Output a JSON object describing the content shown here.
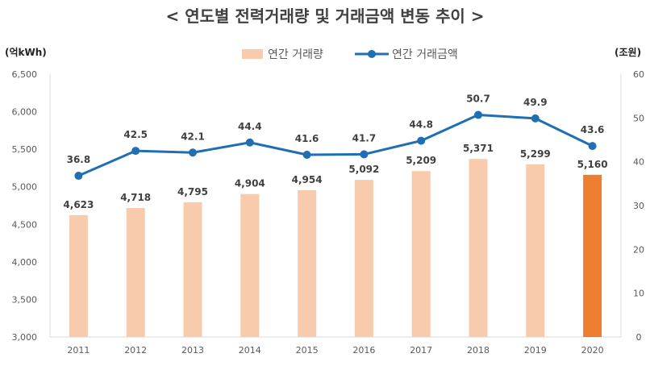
{
  "chart_data": {
    "type": "bar",
    "title": "< 연도별 전력거래량 및 거래금액 변동 추이 >",
    "ylabel_left": "(억kWh)",
    "ylabel_right": "(조원)",
    "categories": [
      "2011",
      "2012",
      "2013",
      "2014",
      "2015",
      "2016",
      "2017",
      "2018",
      "2019",
      "2020"
    ],
    "ylim_left": [
      3000,
      6500
    ],
    "yticks_left": [
      "3,000",
      "3,500",
      "4,000",
      "4,500",
      "5,000",
      "5,500",
      "6,000",
      "6,500"
    ],
    "ylim_right": [
      0,
      60
    ],
    "yticks_right": [
      "0",
      "10",
      "20",
      "30",
      "40",
      "50",
      "60"
    ],
    "legend_position": "top-center",
    "grid": false,
    "series": [
      {
        "name": "연간 거래량",
        "type": "bar",
        "axis": "left",
        "color": "#F8CBAD",
        "highlight_color": "#ED7D31",
        "values": [
          4623,
          4718,
          4795,
          4904,
          4954,
          5092,
          5209,
          5371,
          5299,
          5160
        ],
        "labels": [
          "4,623",
          "4,718",
          "4,795",
          "4,904",
          "4,954",
          "5,092",
          "5,209",
          "5,371",
          "5,299",
          "5,160"
        ]
      },
      {
        "name": "연간 거래금액",
        "type": "line",
        "axis": "right",
        "color": "#1F6FB2",
        "values": [
          36.8,
          42.5,
          42.1,
          44.4,
          41.6,
          41.7,
          44.8,
          50.7,
          49.9,
          43.6
        ],
        "labels": [
          "36.8",
          "42.5",
          "42.1",
          "44.4",
          "41.6",
          "41.7",
          "44.8",
          "50.7",
          "49.9",
          "43.6"
        ]
      }
    ]
  }
}
